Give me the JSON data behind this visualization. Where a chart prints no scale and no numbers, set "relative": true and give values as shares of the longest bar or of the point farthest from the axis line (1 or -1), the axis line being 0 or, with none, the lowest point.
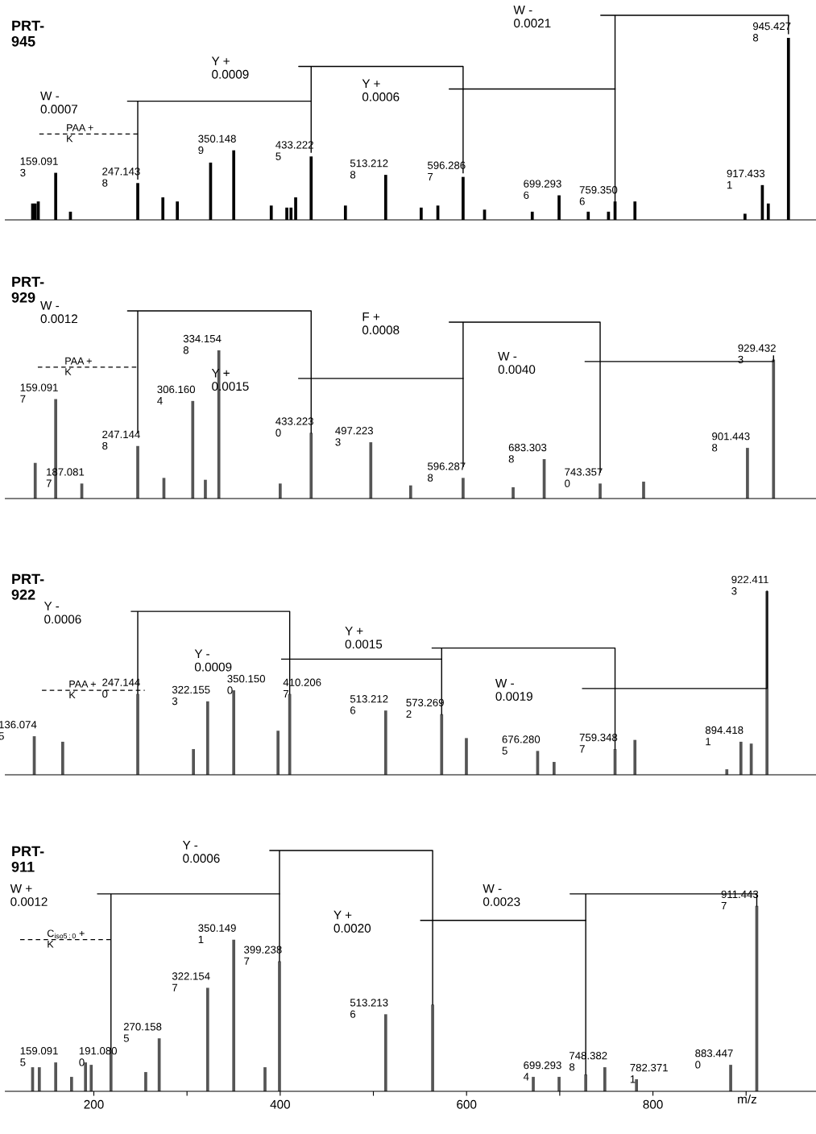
{
  "chart_data": [
    {
      "type": "bar",
      "title": "PRT-945",
      "relative": true,
      "xlim": [
        105,
        975
      ],
      "series": [
        {
          "color": "#000000",
          "x": [
            134.3,
            137.1,
            140.4,
            159.0913,
            174.9,
            247.1438,
            274.1,
            289.6,
            325.3,
            350.1489,
            390.4,
            407.1,
            411.6,
            416.6,
            433.2225,
            470.0,
            513.2128,
            551.3,
            569.2,
            596.2867,
            619.3,
            670.5,
            699.2936,
            730.6,
            752.3,
            759.3506,
            780.7,
            898.8,
            917.4331,
            923.8,
            945.4278
          ],
          "values": [
            0.08,
            0.08,
            0.09,
            0.23,
            0.04,
            0.18,
            0.11,
            0.09,
            0.28,
            0.34,
            0.07,
            0.06,
            0.06,
            0.11,
            0.31,
            0.07,
            0.22,
            0.06,
            0.07,
            0.21,
            0.05,
            0.04,
            0.12,
            0.04,
            0.04,
            0.09,
            0.09,
            0.03,
            0.17,
            0.08,
            0.89
          ]
        },
        {
          "type": "line",
          "color": "#000000",
          "x": [
            759.3506,
            759.3506,
            744,
            945.4278,
            945.4278
          ],
          "values": [
            0.09,
            1.0,
            1.0,
            1.0,
            0.91
          ]
        },
        {
          "type": "line",
          "color": "#000000",
          "x": [
            596.2867,
            596.2867,
            581.4,
            759.3506
          ],
          "values": [
            0.23,
            0.64,
            0.64,
            0.64
          ]
        },
        {
          "type": "line",
          "color": "#000000",
          "x": [
            433.2225,
            433.2225,
            419.9,
            596.2867,
            596.2867
          ],
          "values": [
            0.33,
            0.75,
            0.75,
            0.75,
            0.64
          ]
        },
        {
          "type": "line",
          "color": "#000000",
          "x": [
            247.1438,
            247.1438,
            236.2,
            433.2225
          ],
          "values": [
            0.2,
            0.58,
            0.58,
            0.58
          ]
        },
        {
          "type": "line",
          "color": "#000000",
          "line_style": "dashed",
          "x": [
            141.5,
            247.1438
          ],
          "values": [
            0.42,
            0.42
          ]
        }
      ],
      "annotations": [
        "W - 0.0021",
        "Y + 0.0006",
        "Y + 0.0009",
        "W - 0.0007",
        "PAA + K",
        {
          "text": "159.0913",
          "x": 159.0913,
          "y": 0.23
        },
        {
          "text": "247.1438",
          "x": 247.1438,
          "y": 0.18
        },
        {
          "text": "350.1489",
          "x": 350.1489,
          "y": 0.34
        },
        {
          "text": "433.2225",
          "x": 433.2225,
          "y": 0.31
        },
        {
          "text": "513.2128",
          "x": 513.2128,
          "y": 0.22
        },
        {
          "text": "596.2867",
          "x": 596.2867,
          "y": 0.21
        },
        {
          "text": "699.2936",
          "x": 699.2936,
          "y": 0.12
        },
        {
          "text": "759.3506",
          "x": 759.3506,
          "y": 0.09
        },
        {
          "text": "917.4331",
          "x": 917.4331,
          "y": 0.17
        },
        {
          "text": "945.4278",
          "x": 945.4278,
          "y": 0.89
        }
      ]
    },
    {
      "type": "bar",
      "title": "PRT-929",
      "relative": true,
      "xlim": [
        105,
        975
      ],
      "series": [
        {
          "color": "#555555",
          "x": [
            137.1,
            159.0917,
            187.0817,
            247.1448,
            275.2,
            306.1604,
            319.7,
            334.1548,
            400.0,
            433.223,
            497.2233,
            540.0,
            596.2878,
            650.0,
            683.3038,
            743.357,
            790.0,
            901.4438,
            929.4323
          ],
          "values": [
            0.19,
            0.53,
            0.08,
            0.28,
            0.11,
            0.52,
            0.1,
            0.79,
            0.08,
            0.35,
            0.3,
            0.07,
            0.11,
            0.06,
            0.21,
            0.08,
            0.09,
            0.27,
            0.74
          ]
        },
        {
          "type": "line",
          "color": "#000000",
          "x": [
            247.1448,
            247.1448,
            236.2,
            433.223,
            433.223
          ],
          "values": [
            0.35,
            1.0,
            1.0,
            1.0,
            0.35
          ]
        },
        {
          "type": "line",
          "color": "#000000",
          "x": [
            419.9,
            596.2878
          ],
          "values": [
            0.64,
            0.64
          ]
        },
        {
          "type": "line",
          "color": "#000000",
          "x": [
            596.2878,
            596.2878,
            581.4,
            743.357,
            743.357
          ],
          "values": [
            0.17,
            0.94,
            0.94,
            0.94,
            0.14
          ]
        },
        {
          "type": "line",
          "color": "#000000",
          "x": [
            727.3,
            929.4323,
            929.4323
          ],
          "values": [
            0.73,
            0.73,
            0.76
          ]
        },
        {
          "type": "line",
          "color": "#000000",
          "line_style": "dashed",
          "x": [
            139.9,
            247.1448
          ],
          "values": [
            0.7,
            0.7
          ]
        }
      ],
      "annotations": [
        "W - 0.0012",
        "Y + 0.0015",
        "F + 0.0008",
        "W - 0.0040",
        "PAA + K",
        {
          "text": "159.0917",
          "x": 159.0917,
          "y": 0.53
        },
        {
          "text": "187.0817",
          "x": 187.0817,
          "y": 0.08
        },
        {
          "text": "247.1448",
          "x": 247.1448,
          "y": 0.28
        },
        {
          "text": "306.1604",
          "x": 306.1604,
          "y": 0.52
        },
        {
          "text": "334.1548",
          "x": 334.1548,
          "y": 0.79
        },
        {
          "text": "433.2230",
          "x": 433.223,
          "y": 0.35
        },
        {
          "text": "497.2233",
          "x": 497.2233,
          "y": 0.3
        },
        {
          "text": "596.2878",
          "x": 596.2878,
          "y": 0.11
        },
        {
          "text": "683.3038",
          "x": 683.3038,
          "y": 0.21
        },
        {
          "text": "743.3570",
          "x": 743.357,
          "y": 0.08
        },
        {
          "text": "901.4438",
          "x": 901.4438,
          "y": 0.27
        },
        {
          "text": "929.4323",
          "x": 929.4323,
          "y": 0.74
        }
      ]
    },
    {
      "type": "bar",
      "title": "PRT-922",
      "relative": true,
      "xlim": [
        105,
        975
      ],
      "series": [
        {
          "color": "#555555",
          "x": [
            136.0745,
            166.6,
            247.144,
            306.9,
            322.1553,
            350.15,
            397.7,
            410.2067,
            513.2126,
            573.2692,
            599.8,
            676.2805,
            693.9,
            759.3487,
            780.7,
            879.3,
            894.4181,
            905.5,
            922.4113
          ],
          "values": [
            0.21,
            0.18,
            0.44,
            0.14,
            0.4,
            0.46,
            0.24,
            0.44,
            0.35,
            0.33,
            0.2,
            0.13,
            0.07,
            0.14,
            0.19,
            0.03,
            0.18,
            0.17,
            1.0
          ]
        },
        {
          "type": "line",
          "color": "#000000",
          "x": [
            247.144,
            247.144,
            240.1,
            410.2067,
            410.2067
          ],
          "values": [
            0.44,
            0.89,
            0.89,
            0.89,
            0.44
          ]
        },
        {
          "type": "line",
          "color": "#000000",
          "x": [
            401.6,
            573.2692
          ],
          "values": [
            0.63,
            0.63
          ]
        },
        {
          "type": "line",
          "color": "#000000",
          "x": [
            573.2692,
            573.2692,
            563.0,
            759.3487,
            759.3487
          ],
          "values": [
            0.33,
            0.69,
            0.69,
            0.69,
            0.14
          ]
        },
        {
          "type": "line",
          "color": "#000000",
          "x": [
            724.5,
            922.4113,
            922.4113
          ],
          "values": [
            0.47,
            0.47,
            1.0
          ]
        },
        {
          "type": "line",
          "color": "#000000",
          "line_style": "dashed",
          "x": [
            144.3,
            254.6
          ],
          "values": [
            0.46,
            0.46
          ]
        }
      ],
      "annotations": [
        "Y - 0.0006",
        "Y - 0.0009",
        "Y + 0.0015",
        "W - 0.0019",
        "PAA + K",
        {
          "text": "136.0745",
          "x": 136.0745,
          "y": 0.21
        },
        {
          "text": "247.1440",
          "x": 247.144,
          "y": 0.44
        },
        {
          "text": "322.1553",
          "x": 322.1553,
          "y": 0.4
        },
        {
          "text": "350.1500",
          "x": 350.15,
          "y": 0.46
        },
        {
          "text": "410.2067",
          "x": 410.2067,
          "y": 0.44
        },
        {
          "text": "513.2126",
          "x": 513.2126,
          "y": 0.35
        },
        {
          "text": "573.2692",
          "x": 573.2692,
          "y": 0.33
        },
        {
          "text": "676.2805",
          "x": 676.2805,
          "y": 0.13
        },
        {
          "text": "759.3487",
          "x": 759.3487,
          "y": 0.14
        },
        {
          "text": "894.4181",
          "x": 894.4181,
          "y": 0.18
        },
        {
          "text": "922.4113",
          "x": 922.4113,
          "y": 1.0
        }
      ]
    },
    {
      "type": "bar",
      "title": "PRT-911",
      "relative": true,
      "xlim": [
        105,
        975
      ],
      "xlabel": "m/z",
      "xticks": [
        200,
        {
          "value": 300,
          "label": null
        },
        400,
        {
          "value": 500,
          "label": null
        },
        600,
        {
          "value": 700,
          "label": null
        },
        800,
        {
          "value": 900,
          "label": null
        }
      ],
      "series": [
        {
          "color": "#555555",
          "x": [
            134.3,
            141.5,
            159.0915,
            176.1,
            191.08,
            197.2,
            218.4,
            255.7,
            270.1585,
            322.1547,
            350.1491,
            383.7,
            399.2387,
            513.2136,
            563.6,
            671.6,
            699.2934,
            727.9,
            748.3828,
            782.3711,
            883.447,
            911.4437
          ],
          "values": [
            0.1,
            0.1,
            0.12,
            0.06,
            0.12,
            0.11,
            0.17,
            0.08,
            0.22,
            0.43,
            0.63,
            0.1,
            0.54,
            0.32,
            0.36,
            0.06,
            0.06,
            0.07,
            0.1,
            0.05,
            0.11,
            0.77
          ]
        },
        {
          "type": "line",
          "color": "#000000",
          "x": [
            399.2387,
            399.2387,
            388.8,
            563.6,
            563.6
          ],
          "values": [
            0.54,
            1.0,
            1.0,
            1.0,
            0.36
          ]
        },
        {
          "type": "line",
          "color": "#000000",
          "x": [
            218.4,
            218.4,
            203.9,
            399.2387
          ],
          "values": [
            0.17,
            0.82,
            0.82,
            0.82
          ]
        },
        {
          "type": "line",
          "color": "#000000",
          "x": [
            550.8,
            727.9
          ],
          "values": [
            0.71,
            0.71
          ]
        },
        {
          "type": "line",
          "color": "#000000",
          "x": [
            727.9,
            727.9,
            711.1,
            911.4437,
            911.4437
          ],
          "values": [
            0.07,
            0.82,
            0.82,
            0.82,
            0.77
          ]
        },
        {
          "type": "line",
          "color": "#000000",
          "line_style": "dashed",
          "x": [
            120.9,
            218.4
          ],
          "values": [
            0.63,
            0.63
          ]
        }
      ],
      "annotations": [
        "Y - 0.0006",
        "W + 0.0012",
        "Y + 0.0020",
        "W - 0.0023",
        "C$_{iso5:0}$ + K",
        {
          "text": "159.0915",
          "x": 159.0915,
          "y": 0.12
        },
        {
          "text": "191.0800",
          "x": 191.08,
          "y": 0.12
        },
        {
          "text": "270.1585",
          "x": 270.1585,
          "y": 0.22
        },
        {
          "text": "322.1547",
          "x": 322.1547,
          "y": 0.43
        },
        {
          "text": "350.1491",
          "x": 350.1491,
          "y": 0.63
        },
        {
          "text": "399.2387",
          "x": 399.2387,
          "y": 0.54
        },
        {
          "text": "513.2136",
          "x": 513.2136,
          "y": 0.32
        },
        {
          "text": "699.2934",
          "x": 699.2934,
          "y": 0.06
        },
        {
          "text": "748.3828",
          "x": 748.3828,
          "y": 0.1
        },
        {
          "text": "782.3711",
          "x": 782.3711,
          "y": 0.05
        },
        {
          "text": "883.4470",
          "x": 883.447,
          "y": 0.11
        },
        {
          "text": "911.4437",
          "x": 911.4437,
          "y": 0.77
        }
      ]
    }
  ]
}
